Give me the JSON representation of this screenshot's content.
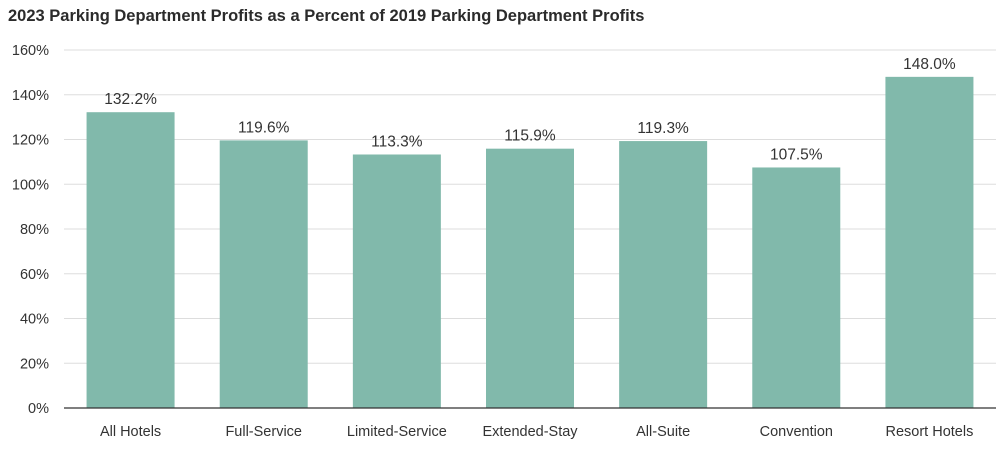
{
  "chart_data": {
    "type": "bar",
    "title": "2023 Parking Department Profits as a Percent of 2019 Parking Department Profits",
    "xlabel": "",
    "ylabel": "",
    "categories": [
      "All Hotels",
      "Full-Service",
      "Limited-Service",
      "Extended-Stay",
      "All-Suite",
      "Convention",
      "Resort Hotels"
    ],
    "values": [
      132.2,
      119.6,
      113.3,
      115.9,
      119.3,
      107.5,
      148.0
    ],
    "value_labels": [
      "132.2%",
      "119.6%",
      "113.3%",
      "115.9%",
      "119.3%",
      "107.5%",
      "148.0%"
    ],
    "ylim": [
      0,
      160
    ],
    "yticks": [
      0,
      20,
      40,
      60,
      80,
      100,
      120,
      140,
      160
    ],
    "ytick_labels": [
      "0%",
      "20%",
      "40%",
      "60%",
      "80%",
      "100%",
      "120%",
      "140%",
      "160%"
    ],
    "grid": true,
    "bar_color": "#81b9ab",
    "gridline_color": "#dddddd",
    "axis_color": "#333333"
  }
}
